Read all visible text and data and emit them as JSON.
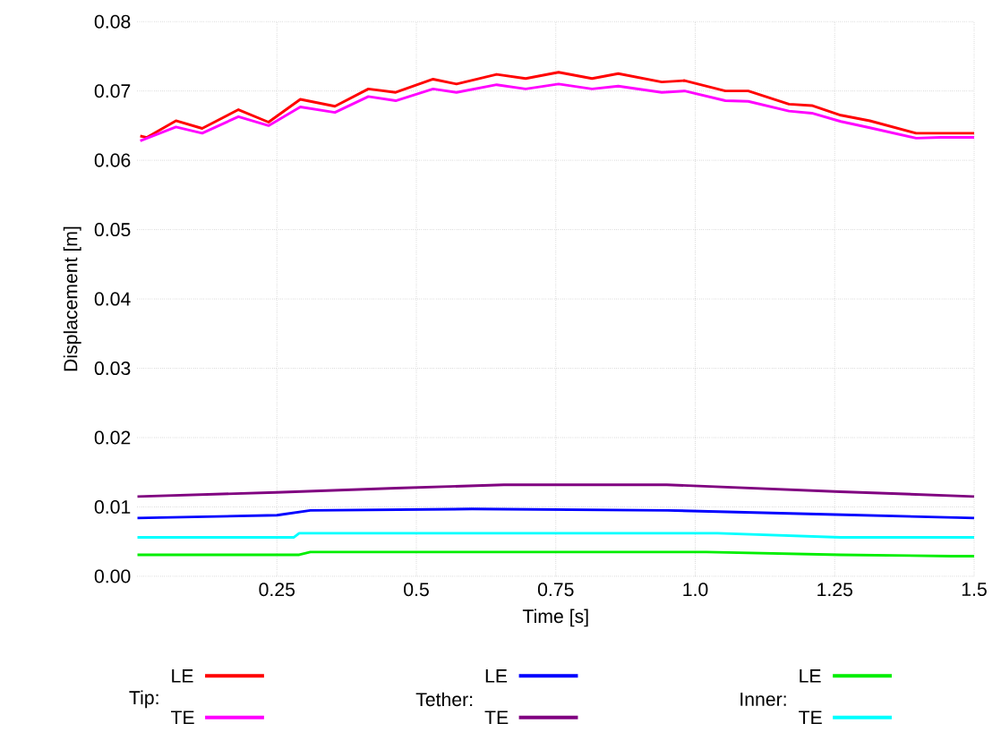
{
  "chart_data": {
    "type": "line",
    "xlabel": "Time [s]",
    "ylabel": "Displacement [m]",
    "xlim": [
      0,
      1.5
    ],
    "ylim": [
      0,
      0.08
    ],
    "xticks": [
      0.25,
      {
        "value": 0.5,
        "label": "0.5"
      },
      0.75,
      {
        "value": 1.0,
        "label": "1.0"
      },
      1.25,
      {
        "value": 1.5,
        "label": "1.5"
      }
    ],
    "yticks": [
      {
        "value": 0,
        "label": "0.00"
      },
      {
        "value": 0.01,
        "label": "0.01"
      },
      {
        "value": 0.02,
        "label": "0.02"
      },
      {
        "value": 0.03,
        "label": "0.03"
      },
      {
        "value": 0.04,
        "label": "0.04"
      },
      {
        "value": 0.05,
        "label": "0.05"
      },
      {
        "value": 0.06,
        "label": "0.06"
      },
      {
        "value": 0.07,
        "label": "0.07"
      },
      {
        "value": 0.08,
        "label": "0.08"
      }
    ],
    "grid": true,
    "legend": "bottom",
    "marker": "none",
    "line_style": "solid",
    "annotations": [
      "Tip:",
      "Tether:",
      "Inner:"
    ],
    "series": [
      {
        "name": "LE",
        "color": "#ff0000",
        "x": [
          0.005,
          0.017,
          0.069,
          0.116,
          0.181,
          0.235,
          0.292,
          0.354,
          0.414,
          0.463,
          0.53,
          0.572,
          0.644,
          0.696,
          0.755,
          0.815,
          0.862,
          0.94,
          0.981,
          1.054,
          1.095,
          1.168,
          1.209,
          1.261,
          1.313,
          1.396,
          1.5
        ],
        "values": [
          0.0635,
          0.0633,
          0.0657,
          0.0646,
          0.0673,
          0.0655,
          0.0688,
          0.0678,
          0.0703,
          0.0698,
          0.0717,
          0.071,
          0.0724,
          0.0718,
          0.0727,
          0.0718,
          0.0725,
          0.0713,
          0.0715,
          0.07,
          0.07,
          0.0681,
          0.0679,
          0.0665,
          0.0657,
          0.0639,
          0.0639
        ]
      },
      {
        "name": "TE",
        "color": "#ff00ff",
        "x": [
          0.005,
          0.069,
          0.116,
          0.181,
          0.235,
          0.292,
          0.354,
          0.414,
          0.463,
          0.53,
          0.572,
          0.644,
          0.696,
          0.755,
          0.815,
          0.862,
          0.94,
          0.981,
          1.054,
          1.095,
          1.168,
          1.209,
          1.261,
          1.313,
          1.396,
          1.44,
          1.5
        ],
        "values": [
          0.0628,
          0.0648,
          0.0639,
          0.0663,
          0.065,
          0.0677,
          0.0669,
          0.0692,
          0.0686,
          0.0703,
          0.0698,
          0.0709,
          0.0703,
          0.071,
          0.0703,
          0.0707,
          0.0698,
          0.07,
          0.0686,
          0.0685,
          0.0671,
          0.0668,
          0.0656,
          0.0647,
          0.0632,
          0.0633,
          0.0633
        ]
      },
      {
        "name": "LE",
        "color": "#0000ff",
        "x": [
          0.0,
          0.25,
          0.31,
          0.6,
          0.95,
          1.25,
          1.5
        ],
        "values": [
          0.0084,
          0.0088,
          0.0095,
          0.0097,
          0.0095,
          0.0089,
          0.0084
        ]
      },
      {
        "name": "TE",
        "color": "#800080",
        "x": [
          0.0,
          0.249,
          0.463,
          0.657,
          0.949,
          1.26,
          1.5
        ],
        "values": [
          0.0115,
          0.0121,
          0.0127,
          0.0132,
          0.0132,
          0.0122,
          0.0115
        ]
      },
      {
        "name": "LE",
        "color": "#00ee00",
        "x": [
          0.0,
          0.29,
          0.31,
          1.02,
          1.26,
          1.46,
          1.5
        ],
        "values": [
          0.0031,
          0.0031,
          0.0035,
          0.0035,
          0.0031,
          0.0029,
          0.0029
        ]
      },
      {
        "name": "TE",
        "color": "#00ffff",
        "x": [
          0.0,
          0.28,
          0.29,
          1.04,
          1.26,
          1.5
        ],
        "values": [
          0.0056,
          0.0056,
          0.0062,
          0.0062,
          0.0056,
          0.0056
        ]
      }
    ]
  }
}
